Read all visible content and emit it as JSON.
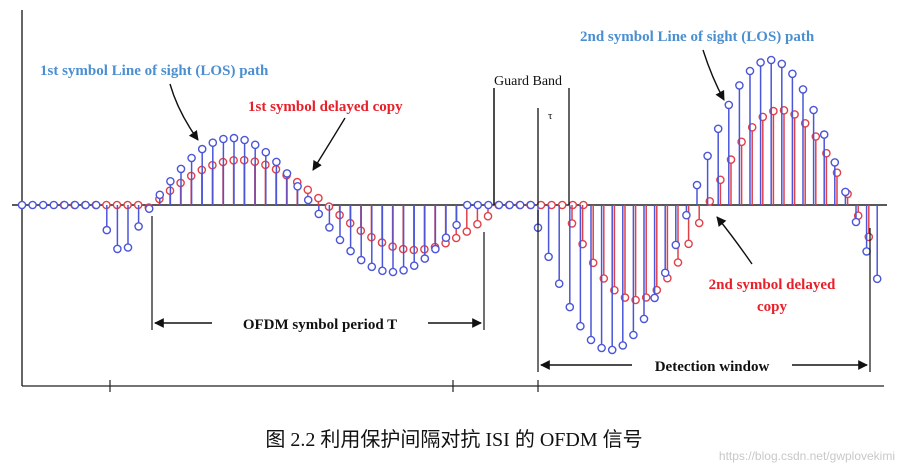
{
  "labels": {
    "los1": "1st symbol Line of sight (LOS) path",
    "delayed1": "1st symbol delayed copy",
    "guard_band": "Guard Band",
    "tau": "τ",
    "los2": "2nd symbol Line of sight (LOS) path",
    "delayed2_line1": "2nd  symbol delayed",
    "delayed2_line2": "copy",
    "period": "OFDM symbol period T",
    "detection": "Detection window"
  },
  "caption": "图 2.2  利用保护间隔对抗 ISI 的 OFDM 信号",
  "watermark": "https://blog.csdn.net/gwplovekimi",
  "colors": {
    "los": "#4a55d8",
    "delayed": "#e04048",
    "los_text": "#4c8fd0",
    "delayed_text": "#e8202a",
    "axis": "#333333"
  }
}
